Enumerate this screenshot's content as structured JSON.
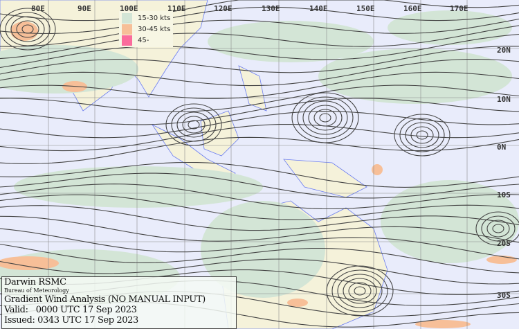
{
  "map": {
    "longitude_labels": [
      "80E",
      "90E",
      "100E",
      "110E",
      "120E",
      "130E",
      "140E",
      "150E",
      "160E",
      "170E"
    ],
    "latitude_labels": [
      "20N",
      "10N",
      "0N",
      "10S",
      "20S",
      "30S"
    ],
    "colors": {
      "ocean": "#e9ecfb",
      "land": "#f5f2da",
      "coast": "#6a7cf0",
      "streamline": "#444444",
      "grid": "#8a8a8a"
    }
  },
  "legend": {
    "items": [
      {
        "label": "15-30 kts",
        "color": "#d3e5d6"
      },
      {
        "label": "30-45 kts",
        "color": "#f7bf98"
      },
      {
        "label": "45-",
        "color": "#fb6b9c"
      }
    ]
  },
  "info": {
    "office": "Darwin RSMC",
    "agency": "Bureau of Meteorology",
    "product": "Gradient Wind Analysis (NO MANUAL INPUT)",
    "valid": "Valid:   0000 UTC 17 Sep 2023",
    "issued": "Issued: 0343 UTC 17 Sep 2023"
  }
}
